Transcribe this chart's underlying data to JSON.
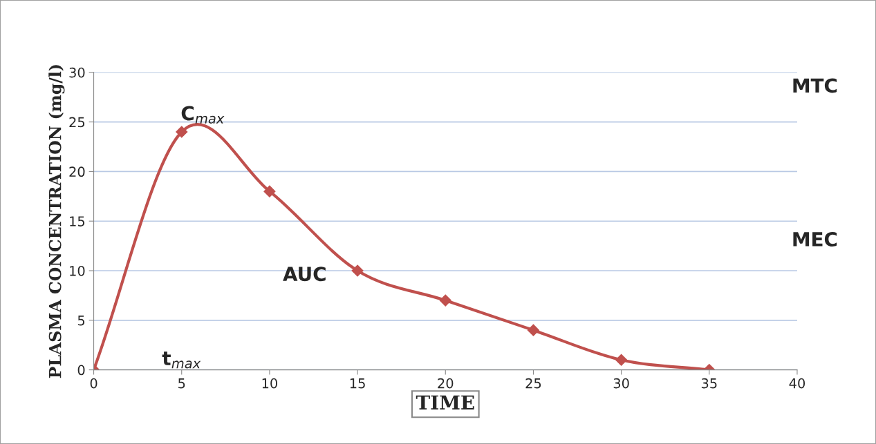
{
  "chart_data": {
    "type": "line",
    "xlabel": "TIME",
    "ylabel": "PLASMA CONCENTRATION (mg/l)",
    "x": [
      0,
      5,
      10,
      15,
      20,
      25,
      30,
      35
    ],
    "series": [
      {
        "color": "#c0504d",
        "values": [
          0,
          24,
          18,
          10,
          7,
          4,
          1,
          0
        ]
      }
    ],
    "xlim": [
      0,
      40
    ],
    "xticks": [
      0,
      5,
      10,
      15,
      20,
      25,
      30,
      35,
      40
    ],
    "ylim": [
      0,
      30
    ],
    "yticks": [
      0,
      5,
      10,
      15,
      20,
      25,
      30
    ],
    "grid": "y",
    "marker": "diamond",
    "line_style": "solid",
    "annotations": [
      {
        "text": "C$_{max}$",
        "x": 5,
        "y": 24
      },
      "MTC",
      "MEC",
      "AUC",
      "t$_{max}$"
    ]
  }
}
